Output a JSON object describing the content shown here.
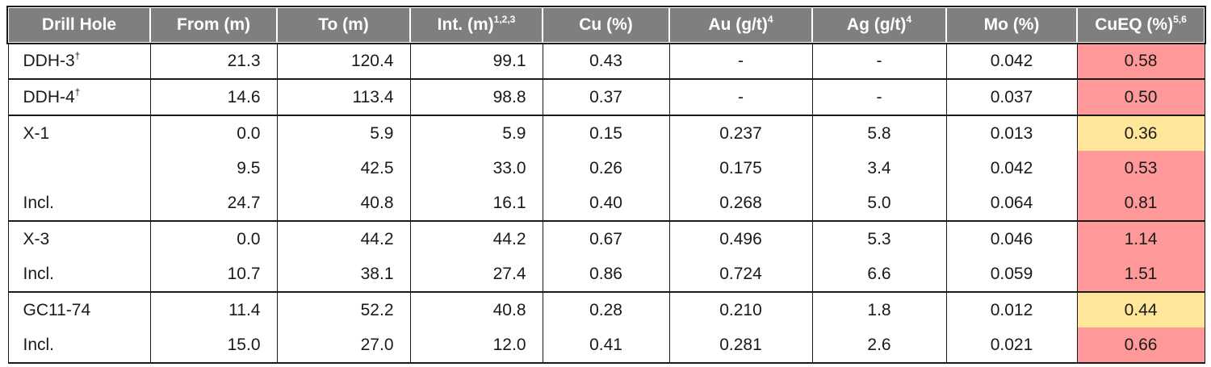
{
  "headers": [
    {
      "label": "Drill Hole",
      "sup": ""
    },
    {
      "label": "From (m)",
      "sup": ""
    },
    {
      "label": "To (m)",
      "sup": ""
    },
    {
      "label": "Int. (m)",
      "sup": "1,2,3"
    },
    {
      "label": "Cu (%)",
      "sup": ""
    },
    {
      "label": "Au (g/t)",
      "sup": "4"
    },
    {
      "label": "Ag (g/t)",
      "sup": "4"
    },
    {
      "label": "Mo (%)",
      "sup": ""
    },
    {
      "label": "CuEQ (%)",
      "sup": "5,6"
    }
  ],
  "highlight_colors": {
    "high": "#ff9999",
    "low": "#ffe699"
  },
  "rows": [
    {
      "hole": "DDH-3",
      "mark": "†",
      "from": "21.3",
      "to": "120.4",
      "int": "99.1",
      "cu": "0.43",
      "au": "-",
      "ag": "-",
      "mo": "0.042",
      "cueq": "0.58",
      "hl": "high",
      "group_start": true,
      "group_end": true
    },
    {
      "hole": "DDH-4",
      "mark": "†",
      "from": "14.6",
      "to": "113.4",
      "int": "98.8",
      "cu": "0.37",
      "au": "-",
      "ag": "-",
      "mo": "0.037",
      "cueq": "0.50",
      "hl": "high",
      "group_start": true,
      "group_end": true
    },
    {
      "hole": "X-1",
      "mark": "",
      "from": "0.0",
      "to": "5.9",
      "int": "5.9",
      "cu": "0.15",
      "au": "0.237",
      "ag": "5.8",
      "mo": "0.013",
      "cueq": "0.36",
      "hl": "low",
      "group_start": true,
      "group_end": false
    },
    {
      "hole": "",
      "mark": "",
      "from": "9.5",
      "to": "42.5",
      "int": "33.0",
      "cu": "0.26",
      "au": "0.175",
      "ag": "3.4",
      "mo": "0.042",
      "cueq": "0.53",
      "hl": "high",
      "group_start": false,
      "group_end": false
    },
    {
      "hole": "Incl.",
      "mark": "",
      "from": "24.7",
      "to": "40.8",
      "int": "16.1",
      "cu": "0.40",
      "au": "0.268",
      "ag": "5.0",
      "mo": "0.064",
      "cueq": "0.81",
      "hl": "high",
      "group_start": false,
      "group_end": true
    },
    {
      "hole": "X-3",
      "mark": "",
      "from": "0.0",
      "to": "44.2",
      "int": "44.2",
      "cu": "0.67",
      "au": "0.496",
      "ag": "5.3",
      "mo": "0.046",
      "cueq": "1.14",
      "hl": "high",
      "group_start": true,
      "group_end": false
    },
    {
      "hole": "Incl.",
      "mark": "",
      "from": "10.7",
      "to": "38.1",
      "int": "27.4",
      "cu": "0.86",
      "au": "0.724",
      "ag": "6.6",
      "mo": "0.059",
      "cueq": "1.51",
      "hl": "high",
      "group_start": false,
      "group_end": true
    },
    {
      "hole": "GC11-74",
      "mark": "",
      "from": "11.4",
      "to": "52.2",
      "int": "40.8",
      "cu": "0.28",
      "au": "0.210",
      "ag": "1.8",
      "mo": "0.012",
      "cueq": "0.44",
      "hl": "low",
      "group_start": true,
      "group_end": false
    },
    {
      "hole": "Incl.",
      "mark": "",
      "from": "15.0",
      "to": "27.0",
      "int": "12.0",
      "cu": "0.41",
      "au": "0.281",
      "ag": "2.6",
      "mo": "0.021",
      "cueq": "0.66",
      "hl": "high",
      "group_start": false,
      "group_end": true
    }
  ]
}
